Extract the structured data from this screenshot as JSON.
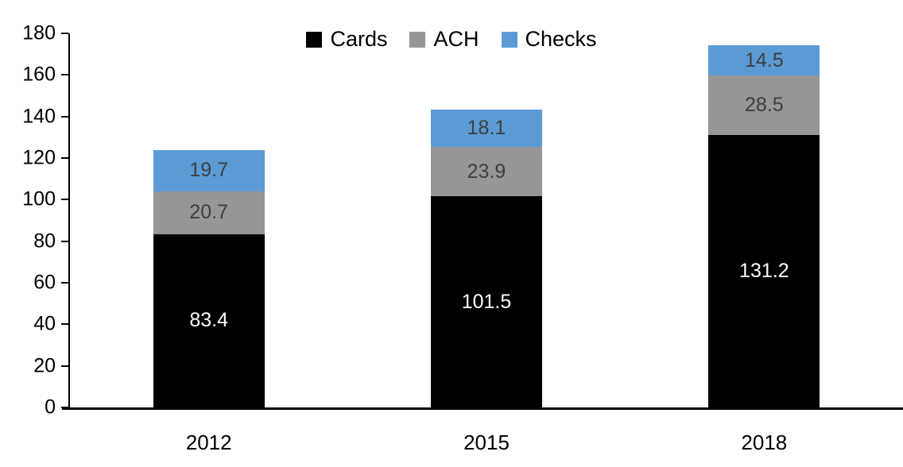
{
  "chart_data": {
    "type": "bar",
    "stacked": true,
    "title": "",
    "xlabel": "",
    "ylabel": "",
    "categories": [
      "2012",
      "2015",
      "2018"
    ],
    "series": [
      {
        "name": "Cards",
        "color": "#000000",
        "label_color": "#ffffff",
        "values": [
          83.4,
          101.5,
          131.2
        ]
      },
      {
        "name": "ACH",
        "color": "#969696",
        "label_color": "#3f3f3f",
        "values": [
          20.7,
          23.9,
          28.5
        ]
      },
      {
        "name": "Checks",
        "color": "#5b9bd5",
        "label_color": "#3f3f3f",
        "values": [
          19.7,
          18.1,
          14.5
        ]
      }
    ],
    "ylim": [
      0,
      180
    ],
    "ytick_step": 20,
    "yticks": [
      0,
      20,
      40,
      60,
      80,
      100,
      120,
      140,
      160,
      180
    ],
    "legend": {
      "position": "top",
      "entries": [
        "Cards",
        "ACH",
        "Checks"
      ]
    },
    "grid": false,
    "value_labels": true,
    "axis_color": "#000000"
  }
}
